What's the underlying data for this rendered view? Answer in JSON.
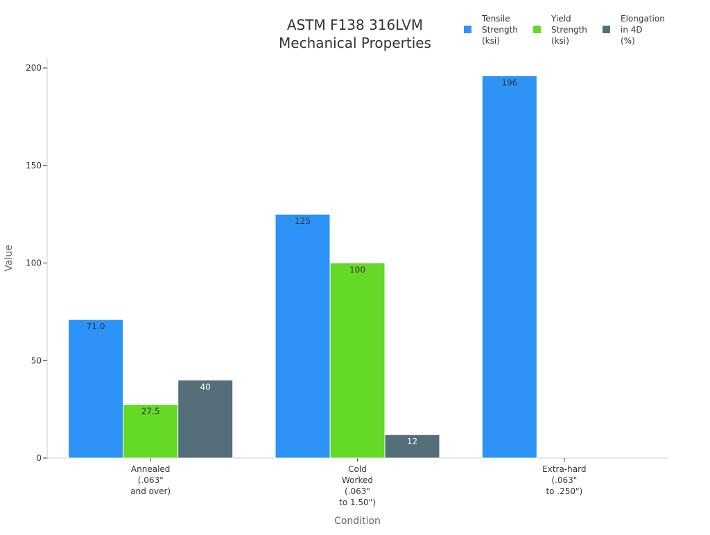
{
  "chart_data": {
    "type": "bar",
    "title_lines": [
      "ASTM F138 316LVM",
      "Mechanical Properties"
    ],
    "xlabel": "Condition",
    "ylabel": "Value",
    "ylim": [
      0,
      205
    ],
    "yticks": [
      0,
      50,
      100,
      150,
      200
    ],
    "grid": false,
    "legend_position": "top-right",
    "categories": [
      [
        "Annealed",
        "(.063\"",
        "and over)"
      ],
      [
        "Cold",
        "Worked",
        "(.063\"",
        "to 1.50\")"
      ],
      [
        "Extra-hard",
        "(.063\"",
        "to .250\")"
      ]
    ],
    "series": [
      {
        "name_lines": [
          "Tensile",
          "Strength",
          "(ksi)"
        ],
        "color": "#2e93f6",
        "label_color": "#333333",
        "values": [
          71.0,
          125,
          196
        ],
        "labels": [
          "71.0",
          "125",
          "196"
        ]
      },
      {
        "name_lines": [
          "Yield",
          "Strength",
          "(ksi)"
        ],
        "color": "#65da26",
        "label_color": "#333333",
        "values": [
          27.5,
          100,
          null
        ],
        "labels": [
          "27.5",
          "100",
          ""
        ]
      },
      {
        "name_lines": [
          "Elongation",
          "in 4D",
          "(%)"
        ],
        "color": "#546e7a",
        "label_color": "#ffffff",
        "values": [
          40,
          12,
          null
        ],
        "labels": [
          "40",
          "12",
          ""
        ]
      }
    ]
  }
}
